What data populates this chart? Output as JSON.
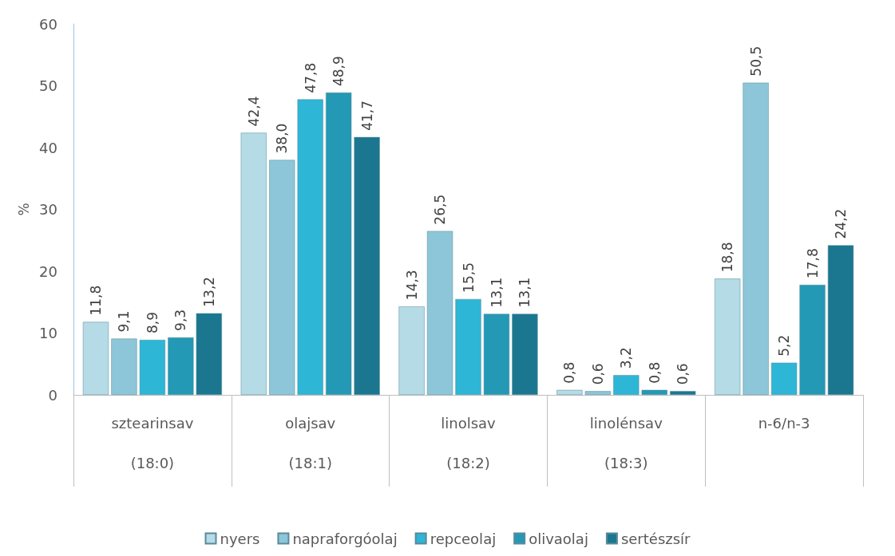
{
  "chart_data": {
    "type": "bar",
    "ylabel": "%",
    "categories": [
      "sztearinsav\n(18:0)",
      "olajsav\n(18:1)",
      "linolsav\n(18:2)",
      "linolénsav\n(18:3)",
      "n-6/n-3"
    ],
    "series": [
      {
        "name": "nyers",
        "color": "#b4dbe6",
        "values": [
          11.8,
          42.4,
          14.3,
          0.8,
          18.8
        ],
        "value_labels": [
          "11,8",
          "42,4",
          "14,3",
          "0,8",
          "18,8"
        ]
      },
      {
        "name": "napraforgóolaj",
        "color": "#8cc6d8",
        "values": [
          9.1,
          38.0,
          26.5,
          0.6,
          50.5
        ],
        "value_labels": [
          "9,1",
          "38,0",
          "26,5",
          "0,6",
          "50,5"
        ]
      },
      {
        "name": "repceolaj",
        "color": "#2db6d6",
        "values": [
          8.9,
          47.8,
          15.5,
          3.2,
          5.2
        ],
        "value_labels": [
          "8,9",
          "47,8",
          "15,5",
          "3,2",
          "5,2"
        ]
      },
      {
        "name": "olivaolaj",
        "color": "#2399b5",
        "values": [
          9.3,
          48.9,
          13.1,
          0.8,
          17.8
        ],
        "value_labels": [
          "9,3",
          "48,9",
          "13,1",
          "0,8",
          "17,8"
        ]
      },
      {
        "name": "sertészsír",
        "color": "#1b7790",
        "values": [
          13.2,
          41.7,
          13.1,
          0.6,
          24.2
        ],
        "value_labels": [
          "13,2",
          "41,7",
          "13,1",
          "0,6",
          "24,2"
        ]
      }
    ],
    "ylim": [
      0,
      60
    ],
    "yticks": [
      0,
      10,
      20,
      30,
      40,
      50,
      60
    ],
    "grid": false,
    "legend": "bottom"
  }
}
